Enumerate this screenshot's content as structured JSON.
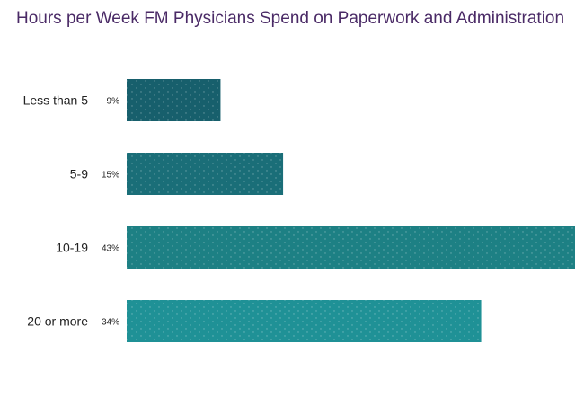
{
  "chart_data": {
    "type": "bar",
    "orientation": "horizontal",
    "title": "Hours per Week FM Physicians Spend on Paperwork and Administration",
    "categories": [
      "Less than 5",
      "5-9",
      "10-19",
      "20 or more"
    ],
    "values": [
      9,
      15,
      43,
      34
    ],
    "value_labels": [
      "9%",
      "15%",
      "43%",
      "34%"
    ],
    "xlim": [
      0,
      43
    ],
    "grid": false,
    "legend": "none",
    "colors": [
      "#175f6c",
      "#1a6e78",
      "#1d8084",
      "#1f9196"
    ]
  }
}
